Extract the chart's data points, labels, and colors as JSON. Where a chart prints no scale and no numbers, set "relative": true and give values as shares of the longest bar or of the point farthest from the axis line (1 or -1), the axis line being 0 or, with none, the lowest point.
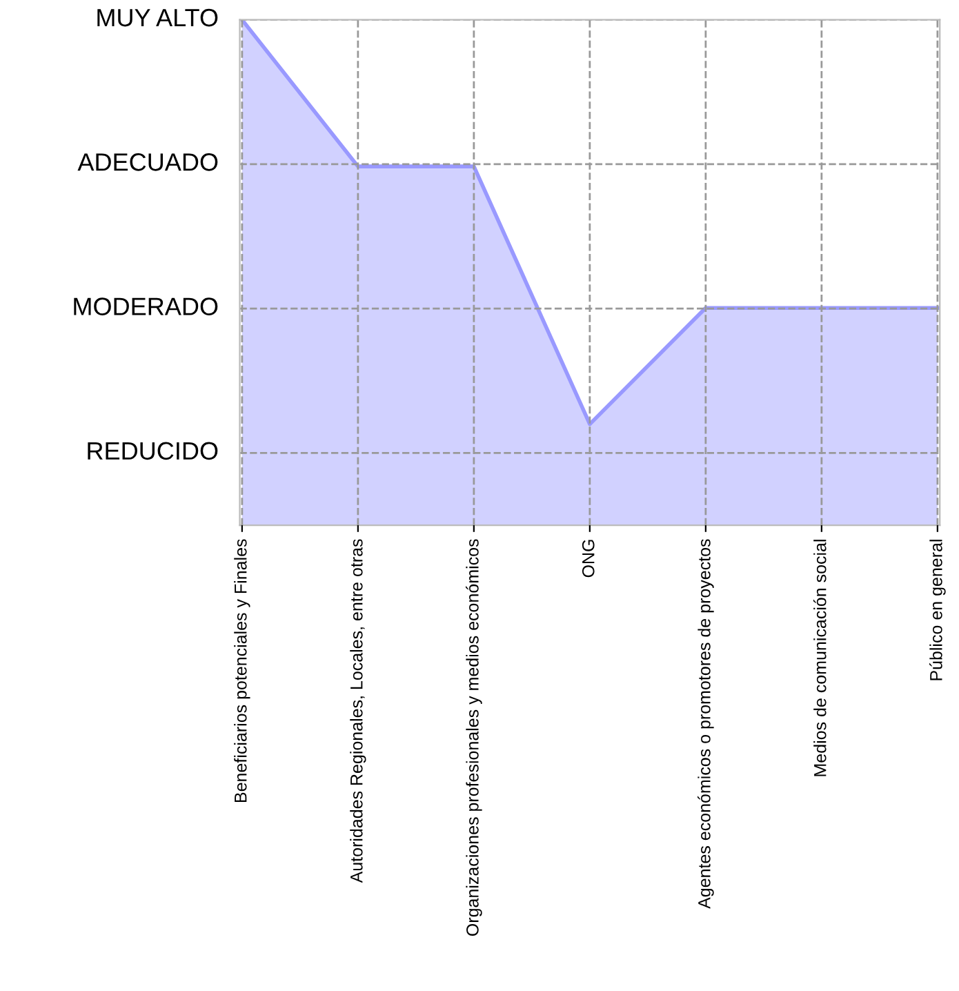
{
  "chart_data": {
    "type": "area",
    "categories": [
      "Beneficiarios potenciales y Finales",
      "Autoridades Regionales, Locales, entre otras",
      "Organizaciones profesionales y medios económicos",
      "ONG",
      "Agentes económicos o promotores de proyectos",
      "Medios de comunicación social",
      "Público en general"
    ],
    "series": [
      {
        "color": "#ccccff",
        "values": [
          1,
          0.71,
          0.71,
          0.2,
          0.43,
          0.43,
          0.43
        ]
      }
    ],
    "relative": true,
    "annotations": [
      "MUY ALTO",
      "ADECUADO",
      "MODERADO",
      "REDUCIDO"
    ],
    "grid": true
  }
}
